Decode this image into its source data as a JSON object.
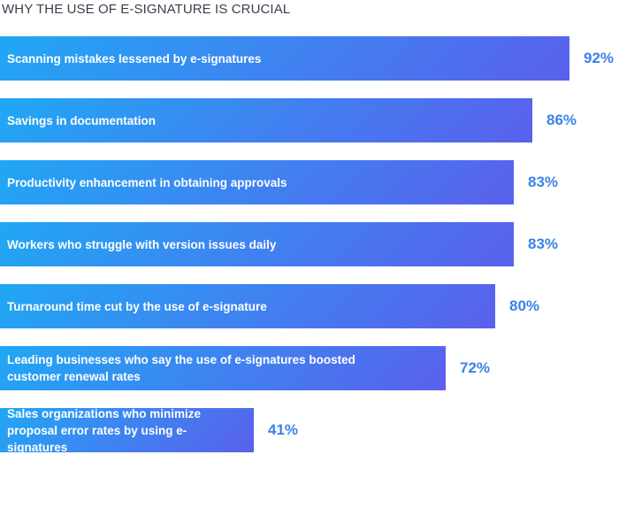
{
  "chart_data": {
    "type": "bar",
    "orientation": "horizontal",
    "title": "WHY THE USE OF E-SIGNATURE IS CRUCIAL",
    "categories": [
      "Scanning mistakes lessened by e-signatures",
      "Savings in documentation",
      "Productivity enhancement in obtaining approvals",
      "Workers who struggle with version issues daily",
      "Turnaround time cut by the use of e-signature",
      "Leading businesses who say the use of e-signatures boosted customer renewal rates",
      "Sales organizations who minimize proposal error rates by using e-signatures"
    ],
    "values": [
      92,
      86,
      83,
      83,
      80,
      72,
      41
    ],
    "value_labels": [
      "92%",
      "86%",
      "83%",
      "83%",
      "80%",
      "72%",
      "41%"
    ],
    "xlim": [
      0,
      100
    ],
    "grid": false,
    "colors": {
      "bar_gradient_start": "#20a8f4",
      "bar_gradient_end": "#5a60ec",
      "value_text": "#3b82e8",
      "title_text": "#3a3f4b"
    }
  }
}
